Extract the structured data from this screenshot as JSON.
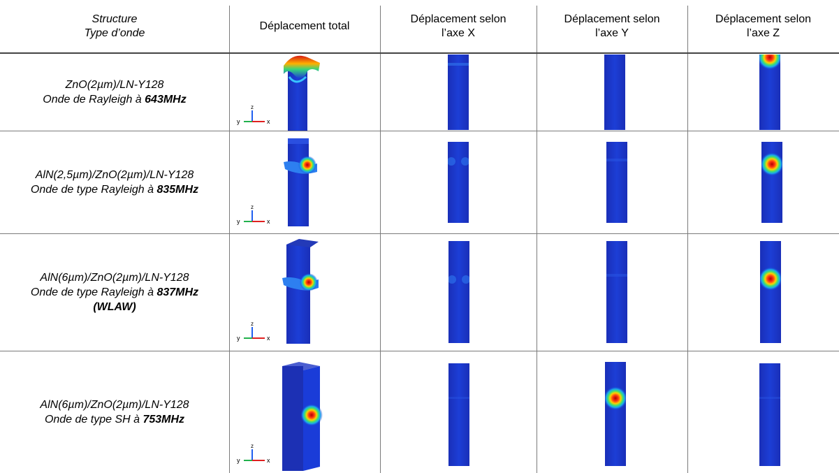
{
  "header": {
    "col1_line1": "Structure",
    "col1_line2": "Type d’onde",
    "col2": "Déplacement total",
    "col3_line1": "Déplacement selon",
    "col3_line2": "l’axe X",
    "col4_line1": "Déplacement selon",
    "col4_line2": "l’axe Y",
    "col5_line1": "Déplacement selon",
    "col5_line2": "l’axe Z"
  },
  "rows": [
    {
      "structure": "ZnO(2µm)/LN-Y128",
      "wave_prefix": "Onde de Rayleigh à ",
      "freq": "643MHz",
      "extra": ""
    },
    {
      "structure": "AlN(2,5µm)/ZnO(2µm)/LN-Y128",
      "wave_prefix": "Onde de type Rayleigh à ",
      "freq": "835MHz",
      "extra": ""
    },
    {
      "structure": "AlN(6µm)/ZnO(2µm)/LN-Y128",
      "wave_prefix": "Onde de type Rayleigh à ",
      "freq": "837MHz",
      "extra": "(WLAW)"
    },
    {
      "structure": "AlN(6µm)/ZnO(2µm)/LN-Y128",
      "wave_prefix": "Onde de type SH à ",
      "freq": "753MHz",
      "extra": ""
    }
  ],
  "axes_labels": {
    "z": "z",
    "y": "y",
    "x": "x"
  },
  "colors": {
    "field_blue": "#1537c9",
    "hot_red": "#e8201a",
    "grid_line": "#7a7a7a"
  }
}
